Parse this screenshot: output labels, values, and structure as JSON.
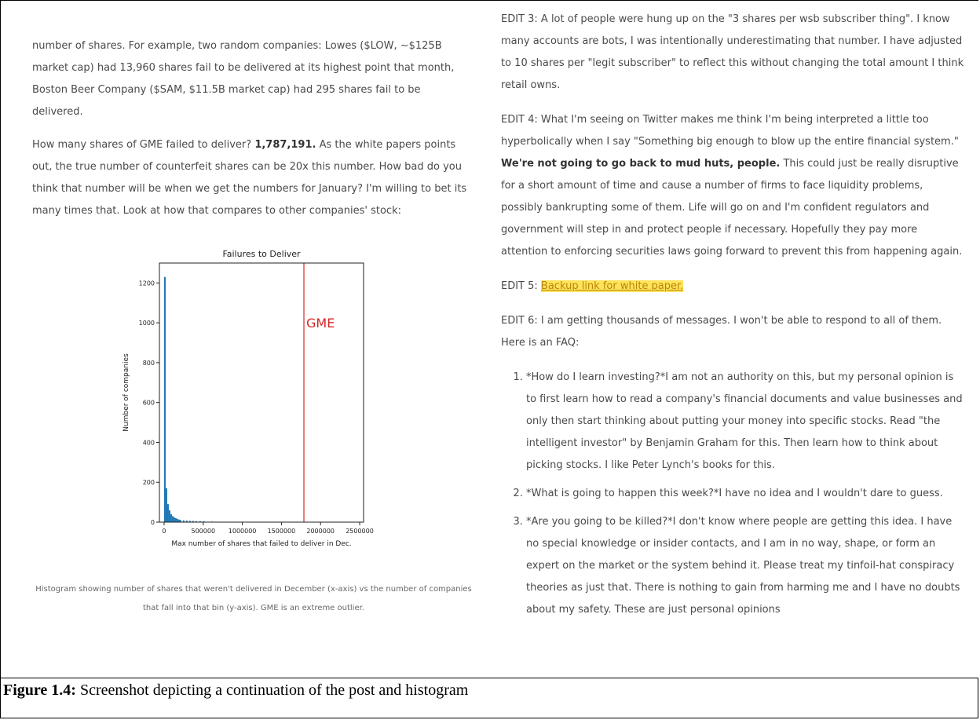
{
  "left": {
    "p1": "number of shares. For example, two random companies: Lowes ($LOW, ~$125B market cap) had 13,960 shares fail to be delivered at its highest point that month, Boston Beer Company ($SAM, $11.5B market cap) had 295 shares fail to be delivered.",
    "p2_pre": "How many shares of GME failed to deliver? ",
    "p2_bold": "1,787,191.",
    "p2_post": " As the white papers points out, the true number of counterfeit shares can be 20x this number. How bad do you think that number will be when we get the numbers for January? I'm willing to bet its many times that. Look at how that compares to other companies' stock:",
    "caption": "Histogram showing number of shares that weren't delivered in December (x-axis) vs the number of companies that fall into that bin (y-axis). GME is an extreme outlier."
  },
  "chart_data": {
    "type": "bar",
    "title": "Failures to Deliver",
    "xlabel": "Max number of shares that failed to deliver in Dec.",
    "ylabel": "Number of companies",
    "xlim": [
      -60000,
      2550000
    ],
    "ylim": [
      0,
      1300
    ],
    "xticks": [
      0,
      500000,
      1000000,
      1500000,
      2000000,
      2500000
    ],
    "xtick_labels": [
      "0",
      "500000",
      "1000000",
      "1500000",
      "2000000",
      "2500000"
    ],
    "yticks": [
      0,
      200,
      400,
      600,
      800,
      1000,
      1200
    ],
    "bin_width": 20000,
    "bin_starts": [
      0,
      20000,
      40000,
      60000,
      80000,
      100000,
      120000,
      140000,
      160000,
      180000,
      200000,
      240000,
      280000,
      320000,
      360000,
      400000,
      450000,
      500000,
      600000,
      700000,
      800000
    ],
    "values": [
      1230,
      170,
      90,
      60,
      40,
      30,
      24,
      20,
      16,
      13,
      11,
      9,
      8,
      7,
      6,
      5,
      5,
      4,
      3,
      2,
      2
    ],
    "bar_color": "#1f77b4",
    "marker": {
      "x": 1787191,
      "label": "GME",
      "color": "#d62728"
    }
  },
  "right": {
    "edit3": "EDIT 3: A lot of people were hung up on the \"3 shares per wsb subscriber thing\". I know many accounts are bots, I was intentionally underestimating that number. I have adjusted to 10 shares per \"legit subscriber\" to reflect this without changing the total amount I think retail owns.",
    "edit4_pre": "EDIT 4: What I'm seeing on Twitter makes me think I'm being interpreted a little too hyperbolically when I say \"Something big enough to blow up the entire financial system.\" ",
    "edit4_bold": "We're not going to go back to mud huts, people.",
    "edit4_post": " This could just be really disruptive for a short amount of time and cause a number of firms to face liquidity problems, possibly bankrupting some of them. Life will go on and I'm confident regulators and government will step in and protect people if necessary. Hopefully they pay more attention to enforcing securities laws going forward to prevent this from happening again.",
    "edit5_pre": "EDIT 5: ",
    "edit5_link": "Backup link for white paper.",
    "edit6": "EDIT 6: I am getting thousands of messages. I won't be able to respond to all of them. Here is an FAQ:",
    "faq": [
      "*How do I learn investing?*I am not an authority on this, but my personal opinion is to first learn how to read a company's financial documents and value businesses and only then start thinking about putting your money into specific stocks. Read \"the intelligent investor\" by Benjamin Graham for this. Then learn how to think about picking stocks. I like Peter Lynch's books for this.",
      "*What is going to happen this week?*I have no idea and I wouldn't dare to guess.",
      "*Are you going to be killed?*I don't know where people are getting this idea. I have no special knowledge or insider contacts, and I am in no way, shape, or form an expert on the market or the system behind it. Please treat my tinfoil-hat conspiracy theories as just that. There is nothing to gain from harming me and I have no doubts about my safety. These are just personal opinions"
    ]
  },
  "figure_caption": {
    "label": "Figure 1.4:",
    "text": " Screenshot depicting a continuation of the post and histogram"
  }
}
